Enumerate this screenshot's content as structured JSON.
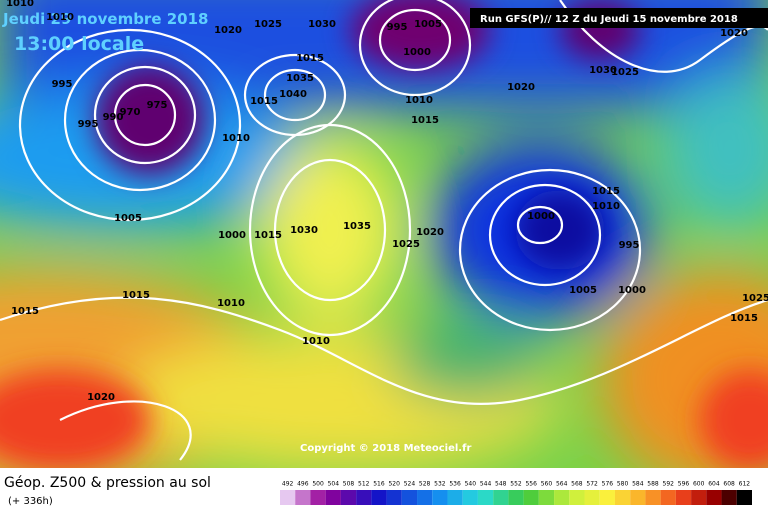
{
  "header": {
    "date": "Jeudi 29 novembre 2018",
    "time": "13:00 locale",
    "run": "Run GFS(P)// 12 Z du Jeudi 15 novembre 2018"
  },
  "copyright": "Copyright © 2018 Meteociel.fr",
  "footer": {
    "title": "Géop. Z500 & pression au sol",
    "lead": "(+ 336h)"
  },
  "isobar_labels": [
    "1010",
    "1010",
    "1020",
    "1025",
    "1030",
    "995",
    "1005",
    "1000",
    "1015",
    "1035",
    "1040",
    "1015",
    "1010",
    "995",
    "995",
    "990",
    "970",
    "975",
    "1010",
    "1015",
    "1020",
    "1030",
    "1025",
    "1020",
    "1005",
    "1000",
    "1015",
    "1030",
    "1035",
    "1025",
    "1020",
    "1000",
    "1015",
    "1010",
    "995",
    "1005",
    "1000",
    "1015",
    "1010",
    "1015",
    "1010",
    "1020",
    "1015",
    "1025"
  ],
  "color_scale": [
    492,
    496,
    500,
    504,
    508,
    512,
    516,
    520,
    524,
    528,
    532,
    536,
    540,
    544,
    548,
    552,
    556,
    560,
    564,
    568,
    572,
    576,
    580,
    584,
    588,
    592,
    596,
    600,
    604,
    608,
    612
  ]
}
